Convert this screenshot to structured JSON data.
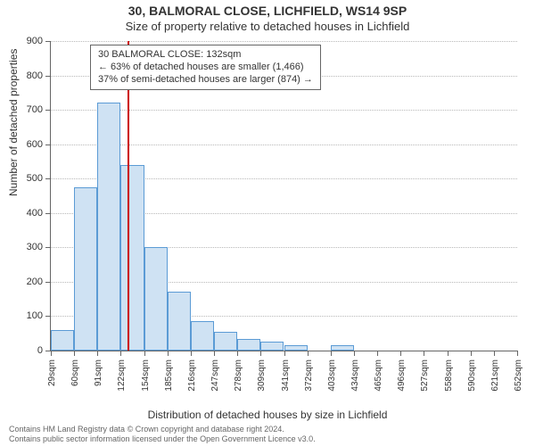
{
  "title_main": "30, BALMORAL CLOSE, LICHFIELD, WS14 9SP",
  "title_sub": "Size of property relative to detached houses in Lichfield",
  "y_axis_label": "Number of detached properties",
  "x_axis_label": "Distribution of detached houses by size in Lichfield",
  "footer_line1": "Contains HM Land Registry data © Crown copyright and database right 2024.",
  "footer_line2": "Contains public sector information licensed under the Open Government Licence v3.0.",
  "chart": {
    "type": "histogram",
    "background_color": "#ffffff",
    "grid_color": "#b9b9b9",
    "axis_color": "#666666",
    "bar_fill": "#cfe2f3",
    "bar_border": "#5b9bd5",
    "reference_line_color": "#cc0000",
    "text_color": "#333333",
    "font_family": "Arial",
    "title_fontsize": 14,
    "subtitle_fontsize": 13,
    "axis_label_fontsize": 12,
    "tick_label_fontsize": 10,
    "annotation_fontsize": 11,
    "ylim": [
      0,
      900
    ],
    "ytick_step": 100,
    "y_ticks": [
      0,
      100,
      200,
      300,
      400,
      500,
      600,
      700,
      800,
      900
    ],
    "bin_width_sqm": 31,
    "x_tick_labels": [
      "29sqm",
      "60sqm",
      "91sqm",
      "122sqm",
      "154sqm",
      "185sqm",
      "216sqm",
      "247sqm",
      "278sqm",
      "309sqm",
      "341sqm",
      "372sqm",
      "403sqm",
      "434sqm",
      "465sqm",
      "496sqm",
      "527sqm",
      "558sqm",
      "590sqm",
      "621sqm",
      "652sqm"
    ],
    "bar_values": [
      60,
      475,
      720,
      540,
      300,
      170,
      85,
      55,
      35,
      25,
      15,
      0,
      15,
      0,
      0,
      0,
      0,
      0,
      0,
      0
    ],
    "reference_value_sqm": 132,
    "annotation": {
      "line1": "30 BALMORAL CLOSE: 132sqm",
      "line2": "← 63% of detached houses are smaller (1,466)",
      "line3": "37% of semi-detached houses are larger (874) →",
      "border_color": "#666666",
      "background_color": "#ffffff"
    }
  }
}
